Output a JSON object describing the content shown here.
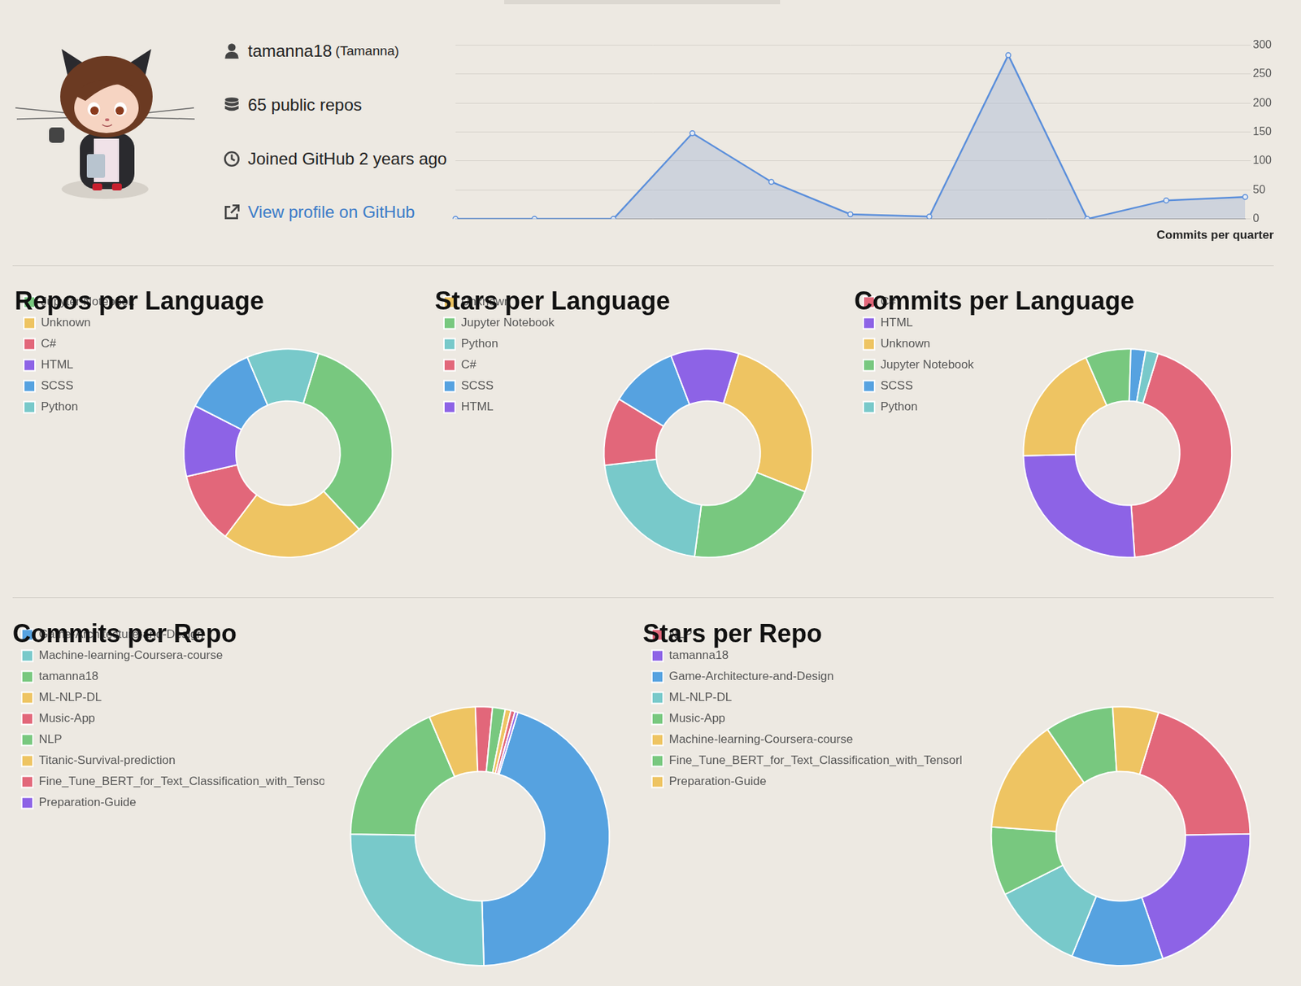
{
  "profile": {
    "username": "tamanna18",
    "name": "(Tamanna)",
    "repos": "65 public repos",
    "joined": "Joined GitHub 2 years ago",
    "link": "View profile on GitHub"
  },
  "chart_data": [
    {
      "type": "line",
      "title": "Commits per quarter",
      "categories": [
        null,
        null,
        null,
        null,
        null,
        null,
        null,
        null,
        null,
        null,
        null
      ],
      "values": [
        0,
        0,
        0,
        148,
        64,
        8,
        4,
        283,
        0,
        32,
        38
      ],
      "color": "#5b8fdb",
      "marker": "circle",
      "ylim": [
        0,
        300
      ],
      "yticks": [
        0,
        50,
        100,
        150,
        200,
        250,
        300
      ],
      "grid": true,
      "tick_labels": "y"
    },
    {
      "type": "doughnut",
      "title": "Repos per Language",
      "categories": [
        "Jupyter Notebook",
        "Unknown",
        "C#",
        "HTML",
        "SCSS",
        "Python"
      ],
      "values": [
        9,
        6,
        3,
        3,
        3,
        3
      ],
      "colors": [
        "#78c87f",
        "#eec462",
        "#e2677a",
        "#8d63e6",
        "#56a2e0",
        "#78c9ca"
      ],
      "legend": "left"
    },
    {
      "type": "doughnut",
      "title": "Stars per Language",
      "categories": [
        "Unknown",
        "Jupyter Notebook",
        "Python",
        "C#",
        "SCSS",
        "HTML"
      ],
      "values": [
        5,
        4,
        4,
        2,
        2,
        2
      ],
      "colors": [
        "#eec462",
        "#78c87f",
        "#78c9ca",
        "#e2677a",
        "#56a2e0",
        "#8d63e6"
      ],
      "legend": "left"
    },
    {
      "type": "doughnut",
      "title": "Commits per Language",
      "categories": [
        "C#",
        "HTML",
        "Unknown",
        "Jupyter Notebook",
        "SCSS",
        "Python"
      ],
      "values": [
        251,
        146,
        107,
        40,
        13,
        11
      ],
      "colors": [
        "#e2677a",
        "#8d63e6",
        "#eec462",
        "#78c87f",
        "#56a2e0",
        "#78c9ca"
      ],
      "legend": "left"
    },
    {
      "type": "doughnut",
      "title": "Commits per Repo",
      "categories": [
        "Game-Architecture-and-Design",
        "Machine-learning-Coursera-course",
        "tamanna18",
        "ML-NLP-DL",
        "Music-App",
        "NLP",
        "Titanic-Survival-prediction",
        "Fine_Tune_BERT_for_Text_Classification_with_TensorFlow",
        "Preparation-Guide"
      ],
      "values": [
        254,
        146,
        104,
        33,
        12,
        9,
        4,
        3,
        2
      ],
      "colors": [
        "#56a2e0",
        "#78c9ca",
        "#78c87f",
        "#eec462",
        "#e2677a",
        "#78c87f",
        "#eec462",
        "#e2677a",
        "#8d63e6"
      ],
      "legend": "left"
    },
    {
      "type": "doughnut",
      "title": "Stars per Repo",
      "categories": [
        "NLP",
        "tamanna18",
        "Game-Architecture-and-Design",
        "ML-NLP-DL",
        "Music-App",
        "Machine-learning-Coursera-course",
        "Fine_Tune_BERT_for_Text_Classification_with_TensorFlow",
        "Preparation-Guide"
      ],
      "values": [
        7,
        7,
        4,
        4,
        3,
        5,
        3,
        2
      ],
      "colors": [
        "#e2677a",
        "#8d63e6",
        "#56a2e0",
        "#78c9ca",
        "#78c87f",
        "#eec462",
        "#78c87f",
        "#eec462"
      ],
      "legend": "left"
    }
  ]
}
